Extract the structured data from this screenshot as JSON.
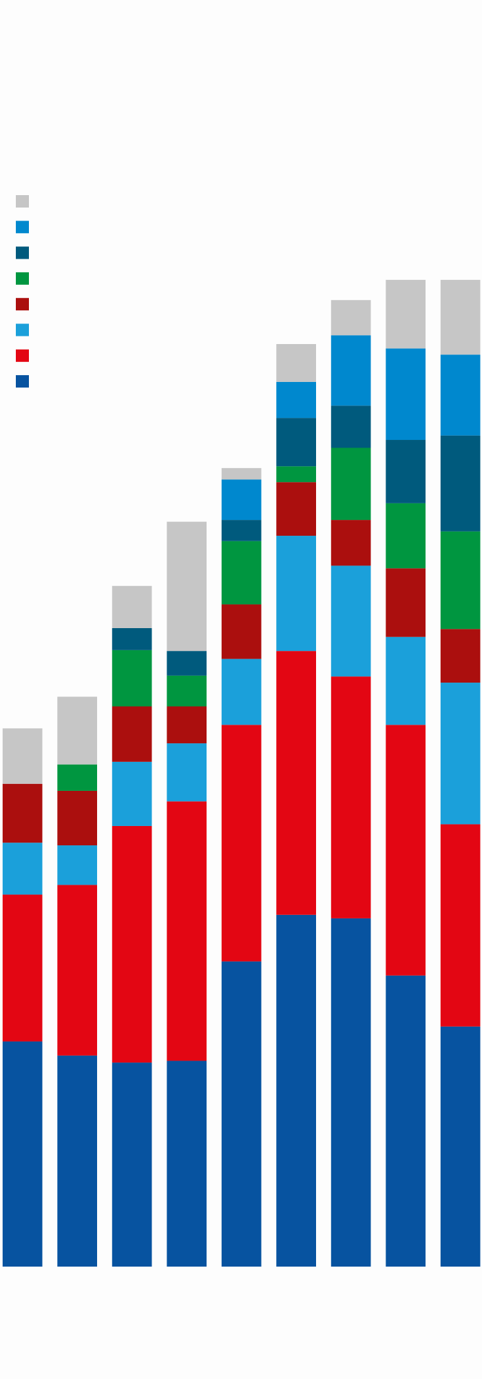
{
  "chart_data": {
    "type": "stacked-bar",
    "categories": [
      null,
      null,
      null,
      null,
      null,
      null,
      null,
      null,
      null
    ],
    "legend": "top-left",
    "series": [
      {
        "color": "#0753a0",
        "values": [
          256,
          240,
          232,
          234,
          347,
          400,
          396,
          331,
          273
        ]
      },
      {
        "color": "#e30613",
        "values": [
          167,
          194,
          269,
          295,
          269,
          300,
          275,
          285,
          230
        ]
      },
      {
        "color": "#1ba0da",
        "values": [
          59,
          45,
          73,
          66,
          75,
          131,
          126,
          100,
          161
        ]
      },
      {
        "color": "#ab0f0e",
        "values": [
          67,
          62,
          63,
          42,
          62,
          61,
          52,
          78,
          61
        ]
      },
      {
        "color": "#009640",
        "values": [
          0,
          30,
          64,
          35,
          72,
          18,
          82,
          74,
          111
        ]
      },
      {
        "color": "#005a7d",
        "values": [
          0,
          0,
          25,
          28,
          24,
          55,
          48,
          72,
          109
        ]
      },
      {
        "color": "#0088ce",
        "values": [
          0,
          0,
          0,
          0,
          46,
          41,
          80,
          104,
          92
        ]
      },
      {
        "color": "#c6c6c6",
        "values": [
          63,
          77,
          48,
          147,
          13,
          43,
          40,
          78,
          85
        ]
      }
    ]
  }
}
